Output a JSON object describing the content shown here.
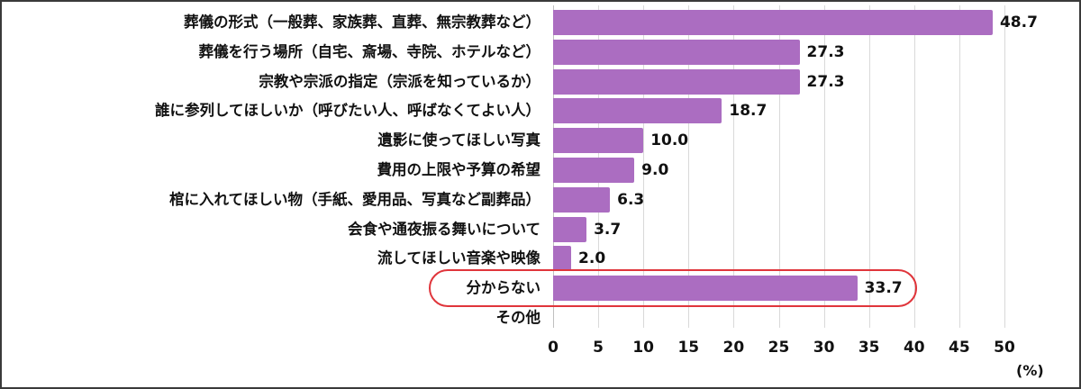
{
  "chart_data": {
    "type": "bar",
    "orientation": "horizontal",
    "title": "",
    "xlabel": "",
    "ylabel": "",
    "unit_label": "(%)",
    "xlim": [
      0,
      50
    ],
    "xticks": [
      0,
      5,
      10,
      15,
      20,
      25,
      30,
      35,
      40,
      45,
      50
    ],
    "grid": true,
    "bar_color": "#ab6dc1",
    "highlight_color": "#e0353b",
    "highlighted_category": "分からない",
    "categories": [
      "葬儀の形式（一般葬、家族葬、直葬、無宗教葬など）",
      "葬儀を行う場所（自宅、斎場、寺院、ホテルなど）",
      "宗教や宗派の指定（宗派を知っているか）",
      "誰に参列してほしいか（呼びたい人、呼ばなくてよい人）",
      "遺影に使ってほしい写真",
      "費用の上限や予算の希望",
      "棺に入れてほしい物（手紙、愛用品、写真など副葬品）",
      "会食や通夜振る舞いについて",
      "流してほしい音楽や映像",
      "分からない",
      "その他"
    ],
    "values": [
      48.7,
      27.3,
      27.3,
      18.7,
      10.0,
      9.0,
      6.3,
      3.7,
      2.0,
      33.7,
      null
    ],
    "value_labels": [
      "48.7",
      "27.3",
      "27.3",
      "18.7",
      "10.0",
      "9.0",
      "6.3",
      "3.7",
      "2.0",
      "33.7",
      ""
    ]
  }
}
